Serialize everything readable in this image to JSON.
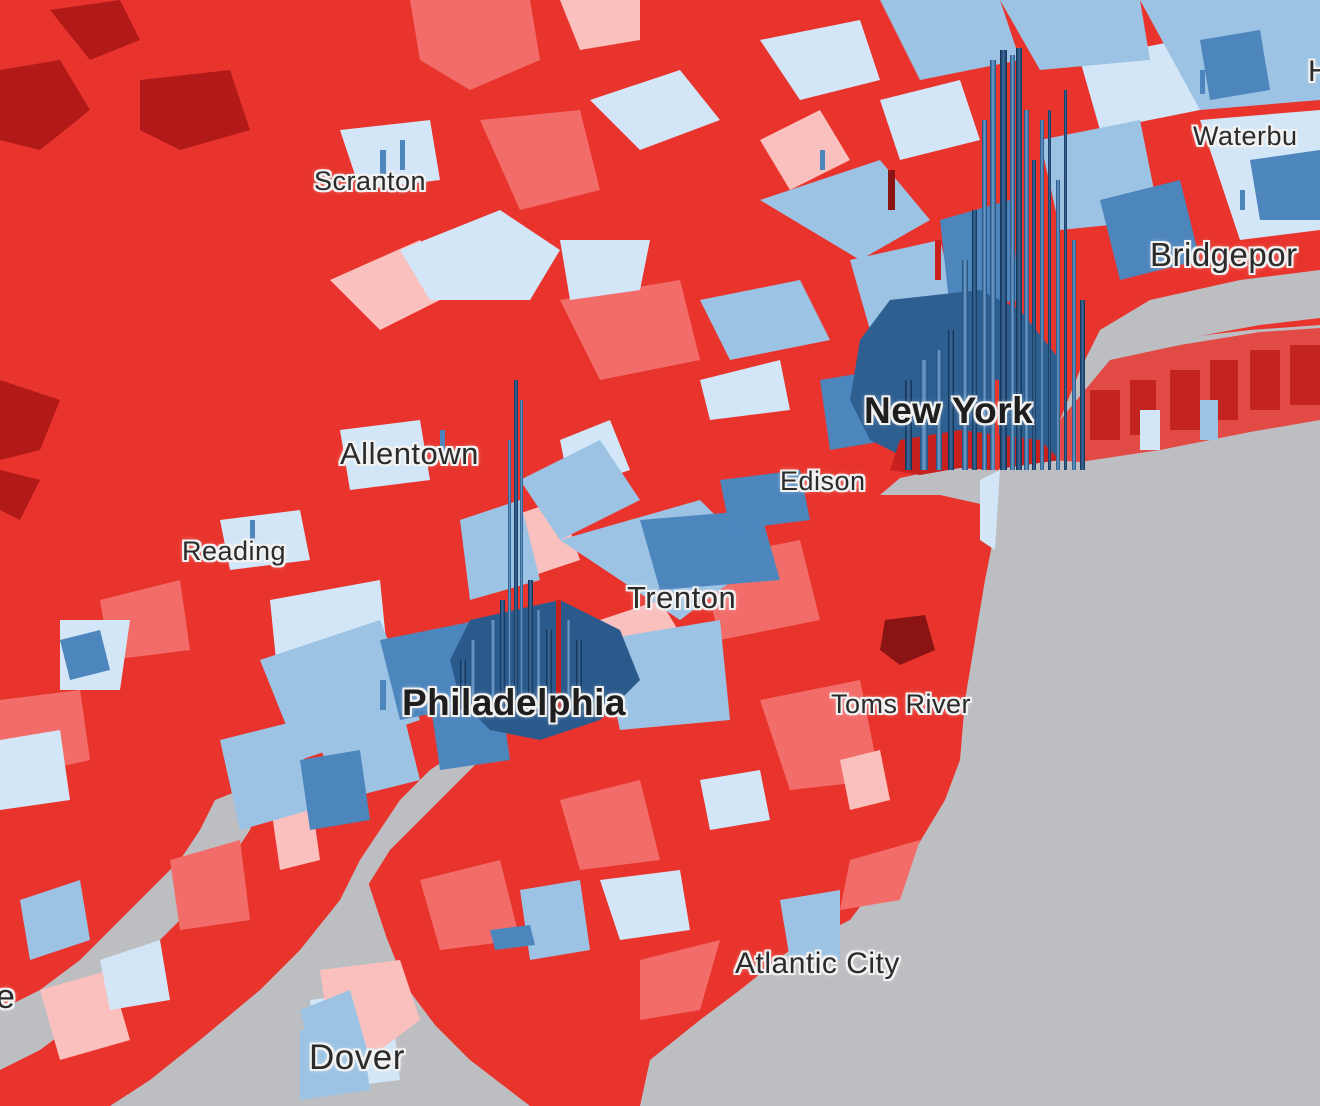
{
  "map": {
    "colors": {
      "water": "#bdbec2",
      "strong_republican": "#e8342c",
      "dark_republican": "#b21a1a",
      "lean_republican": "#f26d6a",
      "light_republican": "#f9c0be",
      "light_democrat": "#d2e6f7",
      "lean_democrat": "#9cc3e4",
      "strong_democrat": "#4d85bd",
      "dark_democrat": "#1d4a78",
      "label_text": "#2b2b2b",
      "label_halo": "#f2f2f2"
    },
    "labels": {
      "scranton": "Scranton",
      "waterbury": "Waterbu",
      "bridgeport": "Bridgepor",
      "new_york": "New York",
      "allentown": "Allentown",
      "edison": "Edison",
      "reading": "Reading",
      "trenton": "Trenton",
      "philadelphia": "Philadelphia",
      "toms_river": "Toms River",
      "atlantic_city": "Atlantic City",
      "dover": "Dover",
      "edge_h": "H",
      "edge_e": "e"
    }
  }
}
